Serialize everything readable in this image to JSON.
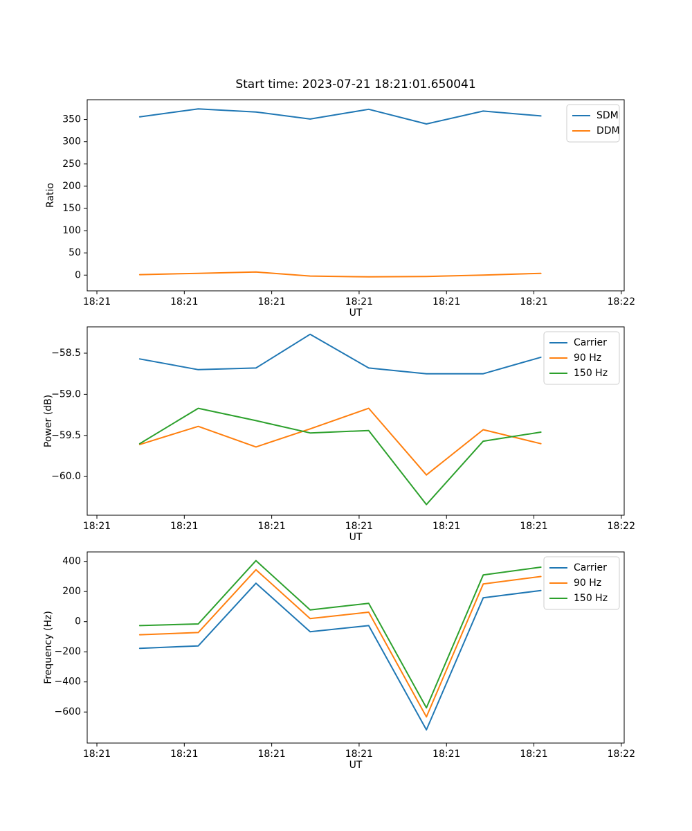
{
  "figure": {
    "title": "Start time: 2023-07-21 18:21:01.650041",
    "background": "#ffffff"
  },
  "colors": {
    "blue": "#1f77b4",
    "orange": "#ff7f0e",
    "green": "#2ca02c",
    "axis": "#000000",
    "legend_border": "#cccccc"
  },
  "x_axis": {
    "label": "UT",
    "tick_values": [
      0,
      10,
      20,
      30,
      40,
      50,
      60
    ],
    "tick_labels": [
      "18:21",
      "18:21",
      "18:21",
      "18:21",
      "18:21",
      "18:21",
      "18:22"
    ],
    "range": [
      -1.11,
      60.33
    ]
  },
  "chart_data": [
    {
      "type": "line",
      "title": "Start time: 2023-07-21 18:21:01.650041",
      "ylabel": "Ratio",
      "xlabel": "UT",
      "ylim": [
        -35.4,
        394.5
      ],
      "yticks": [
        {
          "v": 0,
          "label": "0"
        },
        {
          "v": 50,
          "label": "50"
        },
        {
          "v": 100,
          "label": "100"
        },
        {
          "v": 150,
          "label": "150"
        },
        {
          "v": 200,
          "label": "200"
        },
        {
          "v": 250,
          "label": "250"
        },
        {
          "v": 300,
          "label": "300"
        },
        {
          "v": 350,
          "label": "350"
        }
      ],
      "x": [
        4.9,
        11.6,
        18.2,
        24.4,
        31.1,
        37.7,
        44.2,
        50.8
      ],
      "series": [
        {
          "name": "SDM",
          "color": "#1f77b4",
          "values": [
            356,
            374,
            367,
            351,
            373,
            340,
            369,
            358
          ]
        },
        {
          "name": "DDM",
          "color": "#ff7f0e",
          "values": [
            1,
            4,
            7,
            -2,
            -4,
            -3,
            0,
            4
          ]
        }
      ],
      "legend": {
        "position": "upper right",
        "entries": [
          "SDM",
          "DDM"
        ]
      },
      "grid": false
    },
    {
      "type": "line",
      "ylabel": "Power (dB)",
      "xlabel": "UT",
      "ylim": [
        -60.47,
        -58.18
      ],
      "yticks": [
        {
          "v": -58.5,
          "label": "−58.5"
        },
        {
          "v": -59.0,
          "label": "−59.0"
        },
        {
          "v": -59.5,
          "label": "−59.5"
        },
        {
          "v": -60.0,
          "label": "−60.0"
        }
      ],
      "x": [
        4.9,
        11.6,
        18.2,
        24.4,
        31.1,
        37.7,
        44.2,
        50.8
      ],
      "series": [
        {
          "name": "Carrier",
          "color": "#1f77b4",
          "values": [
            -58.57,
            -58.7,
            -58.68,
            -58.27,
            -58.68,
            -58.75,
            -58.75,
            -58.55
          ]
        },
        {
          "name": "90 Hz",
          "color": "#ff7f0e",
          "values": [
            -59.61,
            -59.39,
            -59.64,
            -59.42,
            -59.17,
            -59.98,
            -59.43,
            -59.6
          ]
        },
        {
          "name": "150 Hz",
          "color": "#2ca02c",
          "values": [
            -59.6,
            -59.17,
            -59.32,
            -59.47,
            -59.44,
            -60.34,
            -59.57,
            -59.46
          ]
        }
      ],
      "legend": {
        "position": "upper right",
        "entries": [
          "Carrier",
          "90 Hz",
          "150 Hz"
        ]
      },
      "grid": false
    },
    {
      "type": "line",
      "ylabel": "Frequency (Hz)",
      "xlabel": "UT",
      "ylim": [
        -806,
        463
      ],
      "yticks": [
        {
          "v": 400,
          "label": "400"
        },
        {
          "v": 200,
          "label": "200"
        },
        {
          "v": 0,
          "label": "0"
        },
        {
          "v": -200,
          "label": "−200"
        },
        {
          "v": -400,
          "label": "−400"
        },
        {
          "v": -600,
          "label": "−600"
        }
      ],
      "x": [
        4.9,
        11.6,
        18.2,
        24.4,
        31.1,
        37.7,
        44.2,
        50.8
      ],
      "series": [
        {
          "name": "Carrier",
          "color": "#1f77b4",
          "values": [
            -177,
            -161,
            255,
            -67,
            -26,
            -718,
            158,
            207
          ]
        },
        {
          "name": "90 Hz",
          "color": "#ff7f0e",
          "values": [
            -87,
            -72,
            345,
            20,
            63,
            -632,
            250,
            300
          ]
        },
        {
          "name": "150 Hz",
          "color": "#2ca02c",
          "values": [
            -26,
            -15,
            405,
            78,
            122,
            -572,
            310,
            362
          ]
        }
      ],
      "legend": {
        "position": "upper right",
        "entries": [
          "Carrier",
          "90 Hz",
          "150 Hz"
        ]
      },
      "grid": false
    }
  ]
}
